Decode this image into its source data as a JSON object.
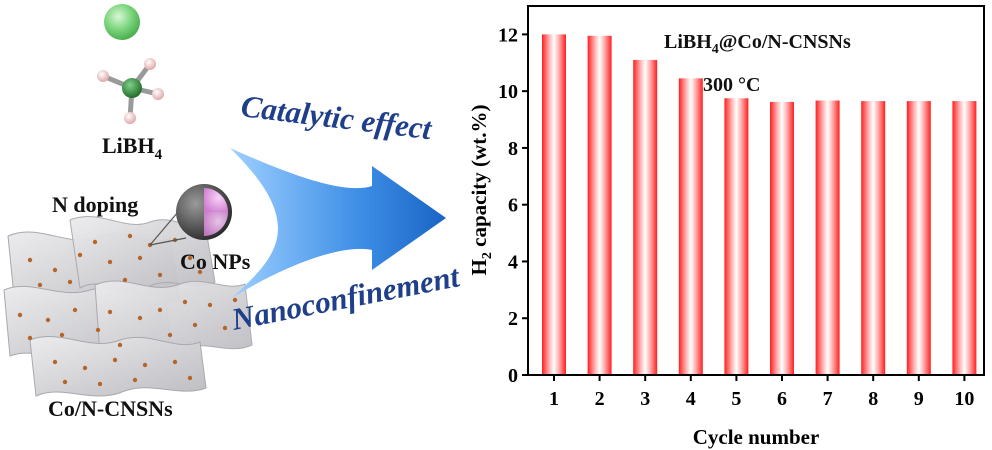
{
  "schematic": {
    "libh4_label": {
      "main": "LiBH",
      "sub": "4"
    },
    "n_doping_label": "N doping",
    "co_nps_label": "Co NPs",
    "support_label": "Co/N-CNSNs",
    "arrow_top_text": "Catalytic effect",
    "arrow_bottom_text": "Nanoconfinement",
    "colors": {
      "li_atom": "#7ed67e",
      "b_atom": "#2e8b3a",
      "h_atom": "#f1c9c9",
      "sheet": "#cfcfd2",
      "co_dot": "#b5652a",
      "arrow": "#2f86e0",
      "arrow_text": "#1f3f8a",
      "np_shell": "#555555",
      "np_core": "#e6a6e6"
    },
    "icons": [
      "li-atom-icon",
      "bh4-molecule-icon",
      "carbon-nanosheet-icon",
      "co-nanoparticle-icon",
      "curved-arrow-icon"
    ]
  },
  "chart_data": {
    "type": "bar",
    "annotation": {
      "line1_main": "LiBH",
      "line1_sub": "4",
      "line1_rest": "@Co/N-CNSNs",
      "line2": "300 °C"
    },
    "xlabel": "Cycle number",
    "ylabel": {
      "pre": "H",
      "sub": "2",
      "post": " capacity (wt.%)"
    },
    "categories": [
      "1",
      "2",
      "3",
      "4",
      "5",
      "6",
      "7",
      "8",
      "9",
      "10"
    ],
    "values": [
      12.0,
      11.95,
      11.1,
      10.45,
      9.75,
      9.62,
      9.67,
      9.65,
      9.65,
      9.65
    ],
    "ylim": [
      0,
      13
    ],
    "yticks": [
      0,
      2,
      4,
      6,
      8,
      10,
      12
    ],
    "bar_color": "#ff1f1f",
    "grid": false,
    "legend": "none"
  }
}
